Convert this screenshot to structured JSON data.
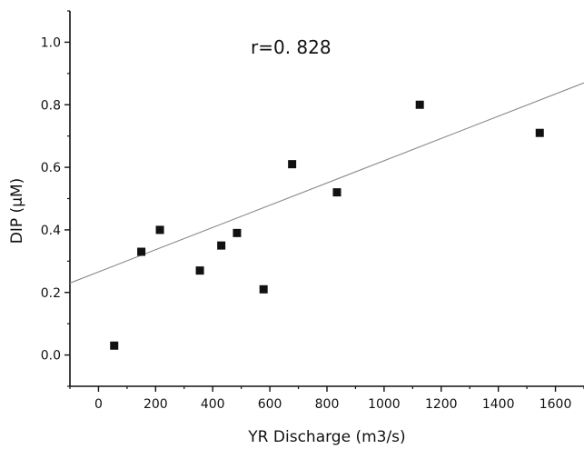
{
  "chart_data": {
    "type": "scatter",
    "title": "",
    "xlabel": "YR Discharge (m3/s)",
    "ylabel": "DIP (μM)",
    "xlim": [
      -100,
      1700
    ],
    "ylim": [
      -0.1,
      1.1
    ],
    "xticks": [
      0,
      200,
      400,
      600,
      800,
      1000,
      1200,
      1400,
      1600
    ],
    "xtick_labels": [
      "0",
      "200",
      "400",
      "600",
      "800",
      "1000",
      "1200",
      "1400",
      "1600"
    ],
    "yticks": [
      0.0,
      0.2,
      0.4,
      0.6,
      0.8,
      1.0
    ],
    "ytick_labels": [
      "0.0",
      "0.2",
      "0.4",
      "0.6",
      "0.8",
      "1.0"
    ],
    "grid": false,
    "series": [
      {
        "points": [
          {
            "x": 55,
            "y": 0.03
          },
          {
            "x": 150,
            "y": 0.33
          },
          {
            "x": 215,
            "y": 0.4
          },
          {
            "x": 355,
            "y": 0.27
          },
          {
            "x": 430,
            "y": 0.35
          },
          {
            "x": 485,
            "y": 0.39
          },
          {
            "x": 578,
            "y": 0.21
          },
          {
            "x": 678,
            "y": 0.61
          },
          {
            "x": 835,
            "y": 0.52
          },
          {
            "x": 1125,
            "y": 0.8
          },
          {
            "x": 1545,
            "y": 0.71
          }
        ]
      }
    ],
    "trendline": {
      "x_start": -100,
      "y_start": 0.23,
      "x_end": 1700,
      "y_end": 0.87
    },
    "annotations": [
      {
        "text": "r=0. 828"
      }
    ]
  }
}
